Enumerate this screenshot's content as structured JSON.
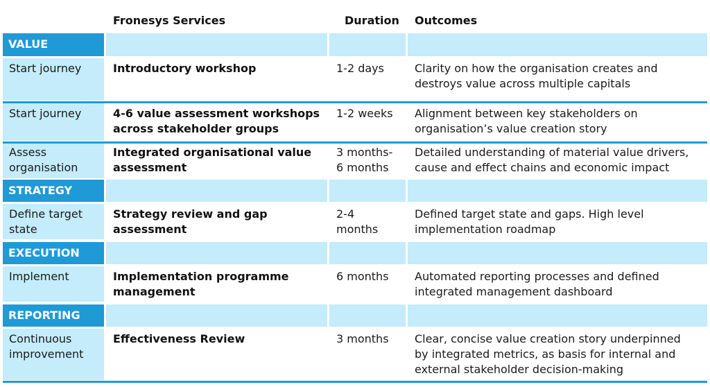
{
  "header": {
    "services": "Fronesys Services",
    "duration": "Duration",
    "outcomes": "Outcomes"
  },
  "sections": [
    {
      "name": "VALUE",
      "rows": [
        {
          "stage": "Start journey",
          "service": "Introductory workshop",
          "duration": "1-2 days",
          "outcome": "Clarity on how the organisation creates and\ndestroys value across multiple capitals"
        },
        {
          "stage": "Start journey",
          "service": "4-6 value assessment workshops\nacross stakeholder groups",
          "duration": "1-2 weeks",
          "outcome": "Alignment between key stakeholders on\norganisation’s value creation story"
        },
        {
          "stage": "Assess\norganisation",
          "service": "Integrated organisational value\nassessment",
          "duration": "3 months-\n6 months",
          "outcome": "Detailed understanding of material value drivers,\ncause and effect chains and economic impact"
        }
      ]
    },
    {
      "name": "STRATEGY",
      "rows": [
        {
          "stage": "Define target\nstate",
          "service": "Strategy review and gap\nassessment",
          "duration": "2-4\nmonths",
          "outcome": "Defined target state and gaps. High level\nimplementation roadmap"
        }
      ]
    },
    {
      "name": "EXECUTION",
      "rows": [
        {
          "stage": "Implement",
          "service": "Implementation programme\nmanagement",
          "duration": "6 months",
          "outcome": "Automated reporting processes and defined\nintegrated management dashboard"
        }
      ]
    },
    {
      "name": "REPORTING",
      "rows": [
        {
          "stage": "Continuous\nimprovement",
          "service": "Effectiveness Review",
          "duration": "3 months",
          "outcome": "Clear, concise value creation story underpinned\nby integrated metrics, as basis for internal and\nexternal stakeholder decision-making"
        }
      ]
    }
  ],
  "colors": {
    "section_bar": "#1f9ad6",
    "light_fill": "#c4ecfa"
  }
}
